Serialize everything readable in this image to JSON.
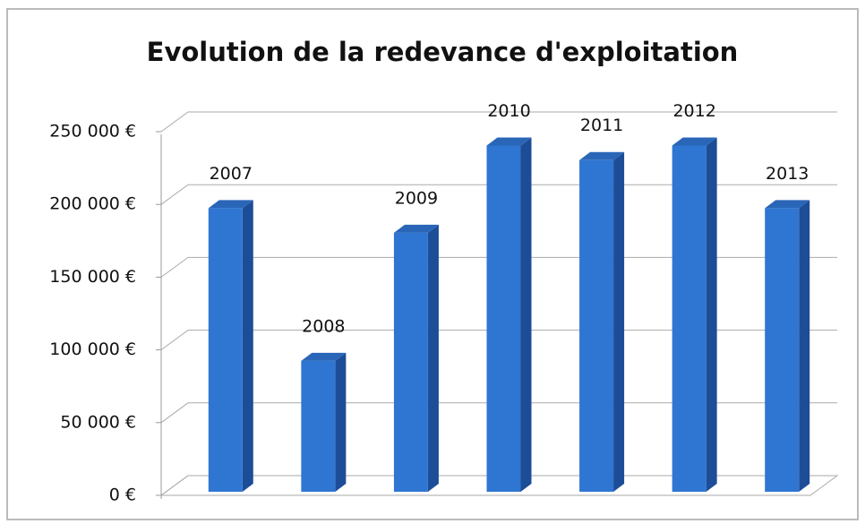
{
  "chart_data": {
    "type": "bar3d",
    "title": "Evolution de la redevance d'exploitation",
    "categories": [
      "2007",
      "2008",
      "2009",
      "2010",
      "2011",
      "2012",
      "2013"
    ],
    "values": [
      195000,
      90000,
      178000,
      238000,
      228000,
      238000,
      195000
    ],
    "color": "#2f76d2",
    "ylim": [
      0,
      250000
    ],
    "yticks": [
      {
        "value": 0,
        "label": "0 €"
      },
      {
        "value": 50000,
        "label": "50 000 €"
      },
      {
        "value": 100000,
        "label": "100 000 €"
      },
      {
        "value": 150000,
        "label": "150 000 €"
      },
      {
        "value": 200000,
        "label": "200 000 €"
      },
      {
        "value": 250000,
        "label": "250 000 €"
      }
    ],
    "grid": true
  }
}
